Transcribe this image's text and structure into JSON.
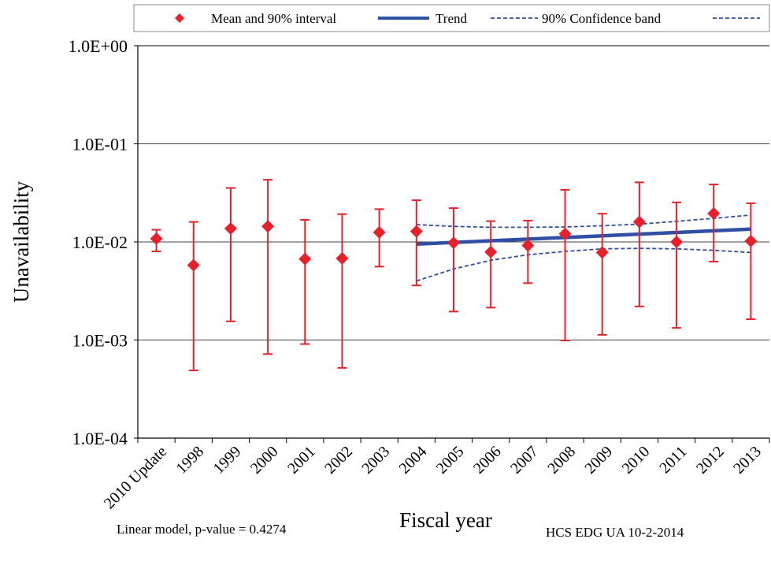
{
  "chart_data": {
    "type": "scatter",
    "title": "",
    "xlabel": "Fiscal year",
    "ylabel": "Unavailability",
    "yscale": "log",
    "ylim": [
      0.0001,
      1
    ],
    "yticks": [
      {
        "value": 1,
        "label": "1.0E+00"
      },
      {
        "value": 0.1,
        "label": "1.0E-01"
      },
      {
        "value": 0.01,
        "label": "1.0E-02"
      },
      {
        "value": 0.001,
        "label": "1.0E-03"
      },
      {
        "value": 0.0001,
        "label": "1.0E-04"
      }
    ],
    "grid": true,
    "legend_position": "top",
    "categories": [
      "2010 Update",
      "1998",
      "1999",
      "2000",
      "2001",
      "2002",
      "2003",
      "2004",
      "2005",
      "2006",
      "2007",
      "2008",
      "2009",
      "2010",
      "2011",
      "2012",
      "2013"
    ],
    "series": [
      {
        "name": "Mean and 90% interval",
        "color": "#e8202a",
        "marker": "diamond",
        "mean": [
          0.0108,
          0.0058,
          0.0137,
          0.0144,
          0.0067,
          0.0068,
          0.0125,
          0.0128,
          0.0098,
          0.0079,
          0.0092,
          0.0121,
          0.0078,
          0.016,
          0.01,
          0.0195,
          0.0102
        ],
        "lower": [
          0.008,
          0.00049,
          0.00155,
          0.00072,
          0.00091,
          0.00052,
          0.0056,
          0.0036,
          0.00195,
          0.00214,
          0.0038,
          0.00099,
          0.00113,
          0.0022,
          0.00133,
          0.0063,
          0.00163
        ],
        "upper": [
          0.0133,
          0.016,
          0.0355,
          0.043,
          0.0168,
          0.0192,
          0.0216,
          0.0266,
          0.0221,
          0.0163,
          0.0165,
          0.034,
          0.0194,
          0.0405,
          0.0253,
          0.0385,
          0.0248
        ]
      },
      {
        "name": "Trend",
        "color": "#2e4fa3",
        "style": "solid",
        "categories": [
          "2004",
          "2013"
        ],
        "values": [
          0.0095,
          0.0135
        ]
      },
      {
        "name": "90% Confidence band",
        "color": "#2e4fa3",
        "style": "dashed",
        "categories": [
          "2004",
          "2005",
          "2006",
          "2007",
          "2008",
          "2009",
          "2010",
          "2011",
          "2012",
          "2013"
        ],
        "upper": [
          0.015,
          0.0144,
          0.0141,
          0.0141,
          0.0142,
          0.0146,
          0.0152,
          0.0162,
          0.0174,
          0.0188
        ],
        "lower": [
          0.004,
          0.0053,
          0.0065,
          0.0074,
          0.008,
          0.0085,
          0.0086,
          0.0085,
          0.0082,
          0.0078
        ]
      }
    ],
    "annotations": [
      "Linear model, p-value = 0.4274",
      "HCS EDG UA 10-2-2014"
    ]
  }
}
